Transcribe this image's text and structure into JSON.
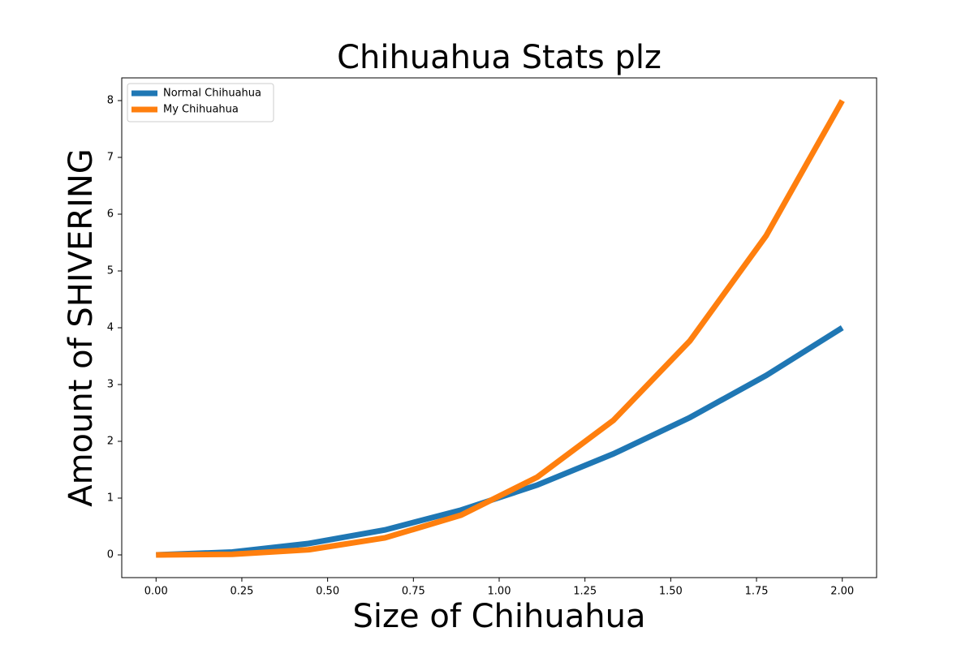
{
  "chart_data": {
    "type": "line",
    "title": "Chihuahua Stats plz",
    "xlabel": "Size of Chihuahua",
    "ylabel": "Amount of SHIVERING",
    "x": [
      0,
      0.222,
      0.444,
      0.667,
      0.889,
      1.111,
      1.333,
      1.556,
      1.778,
      2.0
    ],
    "series": [
      {
        "name": "Normal Chihuahua",
        "color": "#1f77b4",
        "values": [
          0,
          0.05,
          0.2,
          0.44,
          0.79,
          1.23,
          1.78,
          2.42,
          3.16,
          4.0
        ]
      },
      {
        "name": "My Chihuahua",
        "color": "#ff7f0e",
        "values": [
          0,
          0.01,
          0.09,
          0.3,
          0.7,
          1.37,
          2.37,
          3.77,
          5.62,
          8.0
        ]
      }
    ],
    "xlim": [
      -0.1,
      2.1
    ],
    "xticks": [
      {
        "value": 0,
        "label": "0.00"
      },
      {
        "value": 0.25,
        "label": "0.25"
      },
      {
        "value": 0.5,
        "label": "0.50"
      },
      {
        "value": 0.75,
        "label": "0.75"
      },
      {
        "value": 1.0,
        "label": "1.00"
      },
      {
        "value": 1.25,
        "label": "1.25"
      },
      {
        "value": 1.5,
        "label": "1.50"
      },
      {
        "value": 1.75,
        "label": "1.75"
      },
      {
        "value": 2.0,
        "label": "2.00"
      }
    ],
    "ylim": [
      -0.4,
      8.4
    ],
    "yticks": [
      0,
      1,
      2,
      3,
      4,
      5,
      6,
      7,
      8
    ],
    "grid": false,
    "legend": "upper left"
  }
}
